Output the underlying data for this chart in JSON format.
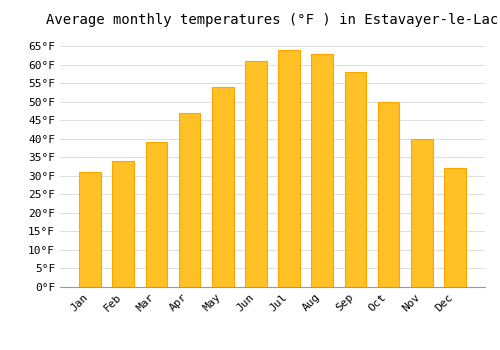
{
  "title": "Average monthly temperatures (°F ) in Estavayer-le-Lac",
  "months": [
    "Jan",
    "Feb",
    "Mar",
    "Apr",
    "May",
    "Jun",
    "Jul",
    "Aug",
    "Sep",
    "Oct",
    "Nov",
    "Dec"
  ],
  "values": [
    31,
    34,
    39,
    47,
    54,
    61,
    64,
    63,
    58,
    50,
    40,
    32
  ],
  "bar_color": "#FFC125",
  "bar_edge_color": "#FFA500",
  "ylim": [
    0,
    68
  ],
  "yticks": [
    0,
    5,
    10,
    15,
    20,
    25,
    30,
    35,
    40,
    45,
    50,
    55,
    60,
    65
  ],
  "ytick_labels": [
    "0°F",
    "5°F",
    "10°F",
    "15°F",
    "20°F",
    "25°F",
    "30°F",
    "35°F",
    "40°F",
    "45°F",
    "50°F",
    "55°F",
    "60°F",
    "65°F"
  ],
  "bg_color": "#ffffff",
  "grid_color": "#dddddd",
  "title_fontsize": 10,
  "tick_fontsize": 8,
  "font_family": "monospace",
  "bar_width": 0.65
}
